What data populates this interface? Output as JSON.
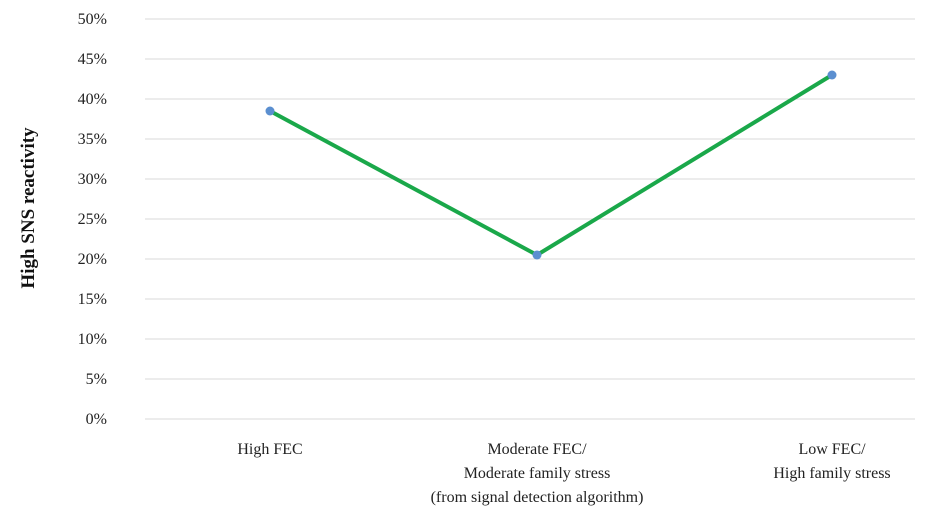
{
  "chart_data": {
    "type": "line",
    "title": "",
    "xlabel": "",
    "ylabel": "High SNS reactivity",
    "categories": [
      [
        "High FEC"
      ],
      [
        "Moderate FEC/",
        "Moderate family stress",
        "(from signal detection algorithm)"
      ],
      [
        "Low FEC/",
        "High family stress"
      ]
    ],
    "series": [
      {
        "values": [
          0.385,
          0.205,
          0.43
        ],
        "line_color": "#1aa84a",
        "marker_color": "#5b8fd0"
      }
    ],
    "yticks": [
      "0%",
      "5%",
      "10%",
      "15%",
      "20%",
      "25%",
      "30%",
      "35%",
      "40%",
      "45%",
      "50%"
    ],
    "ylim": [
      0,
      0.5
    ],
    "grid": true,
    "legend": "none"
  }
}
